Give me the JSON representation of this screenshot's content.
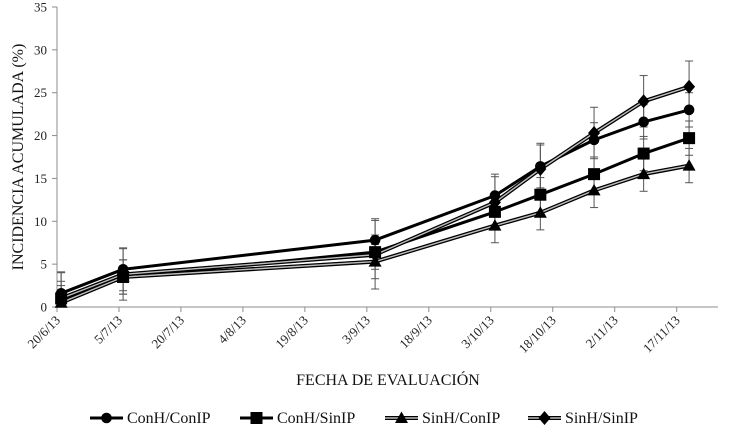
{
  "chart_data": {
    "type": "line",
    "xlabel": "FECHA DE EVALUACIÓN",
    "ylabel": "INCIDENCIA ACUMULADA (%)",
    "ylim": [
      0,
      35
    ],
    "yticks": [
      0,
      5,
      10,
      15,
      20,
      25,
      30,
      35
    ],
    "x_axis_type": "date",
    "xlim": [
      "2013-06-20",
      "2013-11-27"
    ],
    "xticks": [
      {
        "date": "2013-06-20",
        "label": "20/6/13"
      },
      {
        "date": "2013-07-05",
        "label": "5/7/13"
      },
      {
        "date": "2013-07-20",
        "label": "20/7/13"
      },
      {
        "date": "2013-08-04",
        "label": "4/8/13"
      },
      {
        "date": "2013-08-19",
        "label": "19/8/13"
      },
      {
        "date": "2013-09-03",
        "label": "3/9/13"
      },
      {
        "date": "2013-09-18",
        "label": "18/9/13"
      },
      {
        "date": "2013-10-03",
        "label": "3/10/13"
      },
      {
        "date": "2013-10-18",
        "label": "18/10/13"
      },
      {
        "date": "2013-11-02",
        "label": "2/11/13"
      },
      {
        "date": "2013-11-17",
        "label": "17/11/13"
      }
    ],
    "x": [
      "2013-06-21",
      "2013-07-06",
      "2013-09-05",
      "2013-10-04",
      "2013-10-15",
      "2013-10-28",
      "2013-11-09",
      "2013-11-20"
    ],
    "grid": false,
    "legend_position": "bottom",
    "series": [
      {
        "name": "ConH/ConIP",
        "marker": "circle",
        "values": [
          1.6,
          4.4,
          7.8,
          13.0,
          16.4,
          19.5,
          21.6,
          23.0
        ],
        "errors": [
          2.5,
          2.5,
          2.5,
          2.5,
          2.5,
          2.0,
          2.0,
          2.0
        ]
      },
      {
        "name": "ConH/SinIP",
        "marker": "square",
        "values": [
          1.0,
          3.5,
          6.4,
          11.1,
          13.1,
          15.5,
          17.9,
          19.7
        ],
        "errors": [
          2.0,
          2.0,
          2.0,
          2.0,
          2.0,
          2.0,
          2.0,
          2.0
        ]
      },
      {
        "name": "SinH/ConIP",
        "marker": "triangle",
        "values": [
          0.5,
          3.5,
          5.3,
          9.5,
          11.0,
          13.6,
          15.5,
          16.5
        ],
        "errors": [
          2.0,
          2.0,
          2.0,
          2.0,
          2.0,
          2.0,
          2.0,
          2.0
        ]
      },
      {
        "name": "SinH/SinIP",
        "marker": "diamond",
        "values": [
          1.0,
          3.8,
          6.1,
          12.2,
          16.1,
          20.3,
          24.0,
          25.7
        ],
        "errors": [
          3.0,
          3.0,
          4.0,
          3.0,
          3.0,
          3.0,
          3.0,
          3.0
        ]
      }
    ]
  }
}
